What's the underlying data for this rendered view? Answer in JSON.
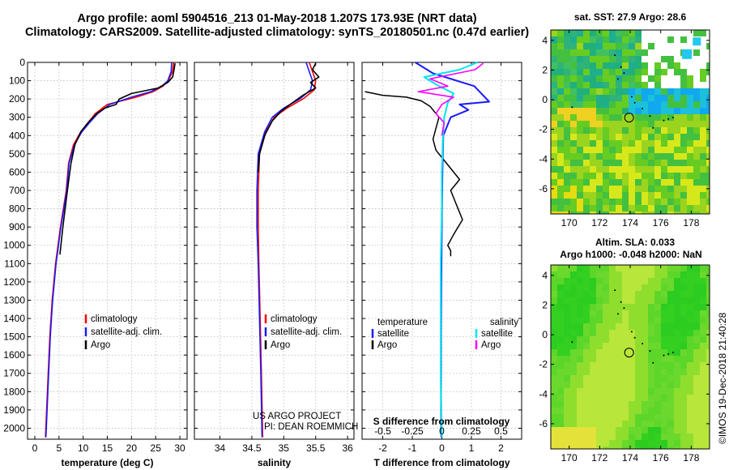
{
  "header": {
    "line1": "Argo profile: aoml 5904516_213 01-May-2018 1.207S 173.93E (NRT data)",
    "line2": "Climatology: CARS2009. Satellite-adjusted climatology: synTS_20180501.nc (0.47d earlier)"
  },
  "side_label": "©IMOS 19-Dec-2018 21:40:28",
  "colors": {
    "red": "#ff0000",
    "blue": "#1a1aff",
    "black": "#000000",
    "cyan": "#00e5ee",
    "magenta": "#ff00ff"
  },
  "chart_data": [
    {
      "id": "temperature",
      "type": "line",
      "title": "",
      "xlabel": "temperature (deg C)",
      "xlim": [
        -1.5,
        31.5
      ],
      "ylim": [
        0,
        2060
      ],
      "yticks": [
        0,
        100,
        200,
        300,
        400,
        500,
        600,
        700,
        800,
        900,
        1000,
        1100,
        1200,
        1300,
        1400,
        1500,
        1600,
        1700,
        1800,
        1900,
        2000
      ],
      "xticks": [
        "0",
        "5",
        "10",
        "15",
        "20",
        "25",
        "30"
      ],
      "xtick_values": [
        0,
        5,
        10,
        15,
        20,
        25,
        30
      ],
      "legend": [
        "climatology",
        "satellite-adj. clim.",
        "Argo"
      ],
      "series": [
        {
          "name": "climatology",
          "color": "#ff0000",
          "x": [
            28.7,
            28.5,
            27.6,
            26.5,
            24.5,
            21.0,
            15.0,
            12.5,
            11.0,
            9.5,
            8.0,
            7.0,
            6.5,
            5.3,
            4.3,
            3.6,
            3.1,
            2.6,
            2.2
          ],
          "y": [
            0,
            50,
            100,
            130,
            160,
            190,
            230,
            280,
            330,
            380,
            450,
            550,
            700,
            900,
            1100,
            1300,
            1500,
            1800,
            2050
          ]
        },
        {
          "name": "satellite-adj. clim.",
          "color": "#1a1aff",
          "x": [
            28.3,
            28.2,
            27.5,
            26.3,
            24.0,
            20.0,
            15.5,
            13.0,
            11.3,
            9.7,
            8.2,
            7.1,
            6.6,
            5.4,
            4.4,
            3.7,
            3.2,
            2.7,
            2.3
          ],
          "y": [
            0,
            50,
            100,
            130,
            160,
            190,
            230,
            280,
            330,
            380,
            450,
            550,
            700,
            900,
            1100,
            1300,
            1500,
            1800,
            2050
          ]
        },
        {
          "name": "Argo",
          "color": "#000000",
          "x": [
            29.0,
            28.8,
            28.5,
            27.5,
            25.5,
            20.0,
            17.5,
            16.8,
            14.5,
            12.8,
            11.0,
            9.5,
            8.3,
            7.5,
            7.0,
            6.5,
            5.8,
            5.2
          ],
          "y": [
            5,
            40,
            80,
            110,
            140,
            170,
            200,
            230,
            250,
            280,
            330,
            380,
            450,
            550,
            650,
            750,
            900,
            1050
          ]
        }
      ]
    },
    {
      "id": "salinity",
      "type": "line",
      "xlabel": "salinity",
      "xlim": [
        33.6,
        36.1
      ],
      "ylim": [
        0,
        2060
      ],
      "xticks": [
        "34",
        "34.5",
        "35",
        "35.5",
        "36"
      ],
      "xtick_values": [
        34,
        34.5,
        35,
        35.5,
        36
      ],
      "legend": [
        "climatology",
        "satellite-adj. clim.",
        "Argo"
      ],
      "annotation_lines": [
        "US ARGO PROJECT",
        "PI: DEAN ROEMMICH"
      ],
      "series": [
        {
          "name": "climatology",
          "color": "#ff0000",
          "x": [
            35.4,
            35.45,
            35.5,
            35.48,
            35.3,
            35.05,
            34.85,
            34.72,
            34.62,
            34.6,
            34.6,
            34.61,
            34.63,
            34.65,
            34.67
          ],
          "y": [
            0,
            50,
            100,
            150,
            200,
            250,
            300,
            380,
            500,
            700,
            900,
            1100,
            1400,
            1700,
            2050
          ]
        },
        {
          "name": "satellite-adj. clim.",
          "color": "#1a1aff",
          "x": [
            35.35,
            35.4,
            35.45,
            35.42,
            35.25,
            35.0,
            34.82,
            34.7,
            34.6,
            34.58,
            34.58,
            34.6,
            34.62,
            34.64,
            34.66
          ],
          "y": [
            0,
            50,
            100,
            150,
            200,
            250,
            300,
            380,
            500,
            700,
            900,
            1100,
            1400,
            1700,
            2050
          ]
        },
        {
          "name": "Argo",
          "color": "#000000",
          "x": [
            35.5,
            35.45,
            35.55,
            35.42,
            35.5,
            35.3,
            35.1,
            34.95,
            34.82,
            34.7,
            34.62,
            34.6
          ],
          "y": [
            5,
            40,
            80,
            110,
            140,
            180,
            230,
            270,
            320,
            400,
            500,
            600
          ]
        }
      ]
    },
    {
      "id": "difference",
      "type": "line",
      "xlabel": "T difference from climatology",
      "xlabel_top": "S difference from climatology",
      "xlim": [
        -2.7,
        2.7
      ],
      "ylim": [
        0,
        2060
      ],
      "xticks": [
        "-2",
        "-1",
        "0",
        "1",
        "2"
      ],
      "xtick_values": [
        -2,
        -1,
        0,
        1,
        2
      ],
      "sticks": [
        "-0.5",
        "-0.25",
        "0",
        "0.25",
        "0.5"
      ],
      "stick_values": [
        -0.5,
        -0.25,
        0,
        0.25,
        0.5
      ],
      "legend_left_title": "temperature",
      "legend_right_title": "salinity",
      "legend": [
        "satellite",
        "Argo",
        "satellite",
        "Argo"
      ],
      "series": [
        {
          "name": "T satellite",
          "color": "#1a1aff",
          "x": [
            -0.9,
            -0.7,
            -0.3,
            1.1,
            1.6,
            0.6,
            0.9,
            0.3,
            0.05,
            0.02,
            0.0,
            -0.02,
            -0.03,
            -0.03,
            -0.02
          ],
          "y": [
            0,
            20,
            60,
            130,
            215,
            230,
            260,
            300,
            400,
            600,
            900,
            1200,
            1500,
            1800,
            2050
          ]
        },
        {
          "name": "T Argo",
          "color": "#000000",
          "x": [
            -2.6,
            -2.0,
            -1.2,
            -0.7,
            -0.4,
            -0.1,
            -0.2,
            -0.3,
            -0.2,
            0.2,
            0.6,
            0.3,
            0.5,
            0.7,
            0.4,
            0.2,
            0.3,
            0.3
          ],
          "y": [
            160,
            180,
            190,
            210,
            240,
            300,
            360,
            420,
            480,
            560,
            640,
            700,
            780,
            860,
            940,
            1000,
            1030,
            1060
          ]
        },
        {
          "name": "S satellite",
          "color": "#00e5ee",
          "x": [
            0.3,
            0.15,
            -0.15,
            -0.05,
            0.1,
            0.05,
            0.02,
            0.01,
            0.0,
            0.0,
            -0.01,
            -0.01,
            -0.01,
            0.0
          ],
          "y": [
            0,
            40,
            80,
            120,
            170,
            220,
            300,
            400,
            600,
            800,
            1100,
            1400,
            1700,
            2050
          ]
        },
        {
          "name": "S Argo",
          "color": "#ff00ff",
          "x": [
            0.35,
            0.28,
            -0.1,
            0.05,
            -0.2,
            0.1,
            0.0,
            -0.05,
            0.02,
            0.0
          ],
          "y": [
            5,
            40,
            90,
            130,
            160,
            190,
            230,
            280,
            330,
            400
          ]
        }
      ]
    },
    {
      "id": "sst_map",
      "type": "heatmap",
      "title": "sat. SST: 27.9 Argo: 28.6",
      "xticks": [
        "170",
        "172",
        "174",
        "176",
        "178"
      ],
      "xtick_values": [
        170,
        172,
        174,
        176,
        178
      ],
      "yticks": [
        "4",
        "2",
        "0",
        "-2",
        "-4",
        "-6"
      ],
      "ytick_values": [
        4,
        2,
        0,
        -2,
        -4,
        -6
      ],
      "xlim": [
        168.8,
        179.2
      ],
      "ylim": [
        -7.7,
        4.7
      ],
      "argo_position": [
        173.93,
        -1.207
      ]
    },
    {
      "id": "sla_map",
      "type": "heatmap",
      "title": "Altim. SLA: 0.033",
      "subtitle": "Argo h1000: -0.048 h2000: NaN",
      "xticks": [
        "170",
        "172",
        "174",
        "176",
        "178"
      ],
      "xtick_values": [
        170,
        172,
        174,
        176,
        178
      ],
      "yticks": [
        "4",
        "2",
        "0",
        "-2",
        "-4",
        "-6"
      ],
      "ytick_values": [
        4,
        2,
        0,
        -2,
        -4,
        -6
      ],
      "xlim": [
        168.8,
        179.2
      ],
      "ylim": [
        -7.7,
        4.7
      ],
      "argo_position": [
        173.93,
        -1.207
      ]
    }
  ]
}
